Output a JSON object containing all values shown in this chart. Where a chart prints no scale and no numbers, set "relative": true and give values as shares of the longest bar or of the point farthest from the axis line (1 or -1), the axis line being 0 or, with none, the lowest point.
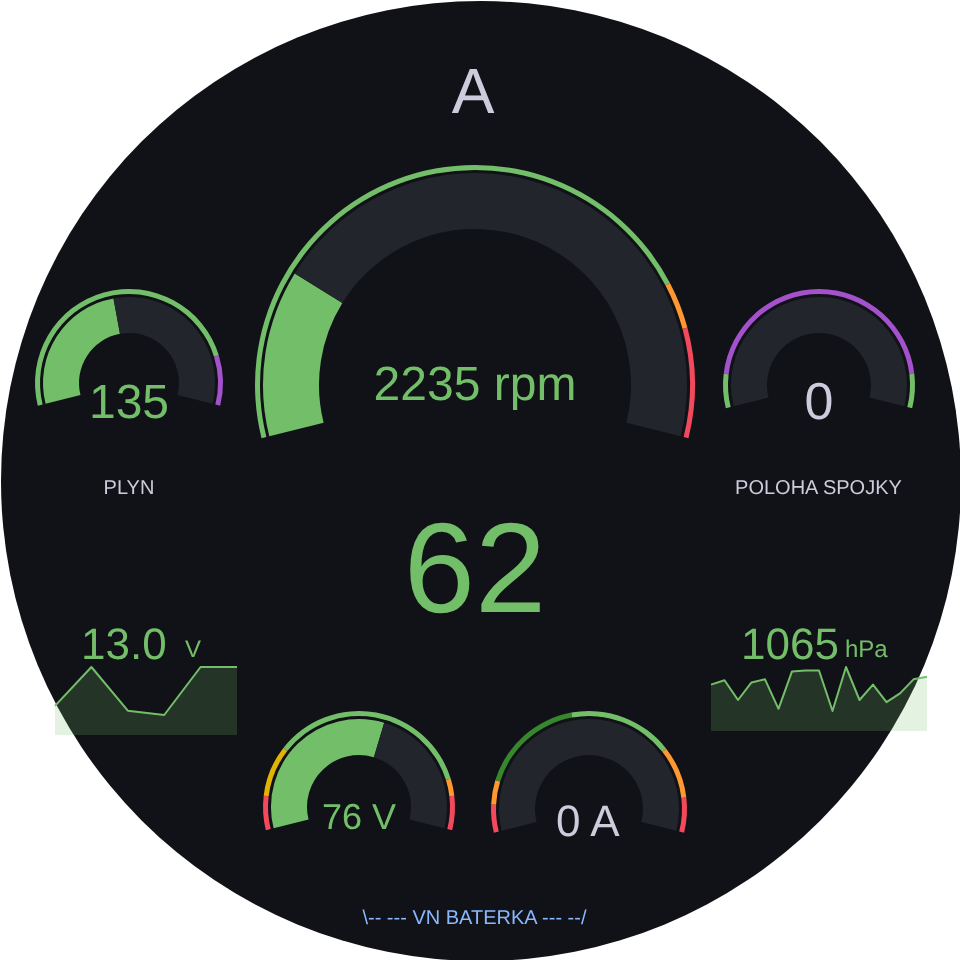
{
  "chart_data": [
    {
      "type": "other",
      "title": "A",
      "annotations": [
        "62",
        "\\-- --- VN BATERKA --- --/"
      ]
    },
    {
      "type": "donut",
      "title": "PLYN",
      "categories": [
        null,
        null
      ],
      "annotations": [
        "135"
      ],
      "series": [
        {
          "values": [
            45,
            55
          ],
          "colors": [
            "#73bf69",
            "#22252b"
          ]
        },
        {
          "values": [
            85,
            15
          ],
          "colors": [
            "#73bf69",
            "#a352cc"
          ]
        }
      ]
    },
    {
      "type": "donut",
      "categories": [
        null,
        null,
        null
      ],
      "annotations": [
        "2235 rpm"
      ],
      "series": [
        {
          "values": [
            22,
            78,
            null
          ],
          "colors": [
            "#73bf69",
            "#22252b",
            null
          ]
        },
        {
          "values": [
            80,
            6,
            14
          ],
          "colors": [
            "#73bf69",
            "#ff9830",
            "#f2495c"
          ]
        }
      ]
    },
    {
      "type": "donut",
      "title": "POLOHA SPOJKY",
      "categories": [
        null,
        null,
        null
      ],
      "annotations": [
        "0"
      ],
      "series": [
        {
          "values": [
            0,
            100,
            null
          ],
          "colors": [
            "#73bf69",
            "#22252b",
            null
          ]
        },
        {
          "values": [
            10,
            80,
            10
          ],
          "colors": [
            "#73bf69",
            "#a352cc",
            "#73bf69"
          ]
        }
      ]
    },
    {
      "type": "area",
      "relative": true,
      "categories": [
        null,
        null,
        null,
        null,
        null,
        null
      ],
      "values": [
        0.19,
        1,
        0.09,
        0,
        1,
        1
      ],
      "color": "#73bf69",
      "annotations": [
        "13.0",
        "V"
      ]
    },
    {
      "type": "area",
      "relative": true,
      "categories": [
        null,
        null,
        null,
        null,
        null,
        null,
        null,
        null,
        null,
        null,
        null,
        null,
        null,
        null,
        null,
        null,
        null
      ],
      "values": [
        0.6,
        0.7,
        0.25,
        0.65,
        0.72,
        0.05,
        0.9,
        0.92,
        0.92,
        0,
        1,
        0.25,
        0.6,
        0.2,
        0.4,
        0.72,
        0.78
      ],
      "color": "#73bf69",
      "annotations": [
        "1065",
        "hPa"
      ]
    },
    {
      "type": "donut",
      "categories": [
        null,
        null,
        null,
        null,
        null
      ],
      "annotations": [
        "76 V"
      ],
      "series": [
        {
          "values": [
            58,
            42,
            null,
            null,
            null
          ],
          "colors": [
            "#73bf69",
            "#22252b",
            null,
            null,
            null
          ]
        },
        {
          "values": [
            10,
            15,
            60,
            5,
            10
          ],
          "colors": [
            "#f2495c",
            "#e0b400",
            "#73bf69",
            "#ff9830",
            "#f2495c"
          ]
        }
      ]
    },
    {
      "type": "donut",
      "categories": [
        null,
        null,
        null,
        null,
        null,
        null
      ],
      "annotations": [
        "0 A"
      ],
      "series": [
        {
          "values": [
            0,
            100,
            null,
            null,
            null,
            null
          ],
          "colors": [
            "#73bf69",
            "#22252b",
            null,
            null,
            null,
            null
          ]
        },
        {
          "values": [
            8,
            7,
            30,
            30,
            15,
            10
          ],
          "colors": [
            "#f2495c",
            "#ff9830",
            "#37872d",
            "#73bf69",
            "#ff9830",
            "#f2495c"
          ]
        }
      ]
    }
  ]
}
